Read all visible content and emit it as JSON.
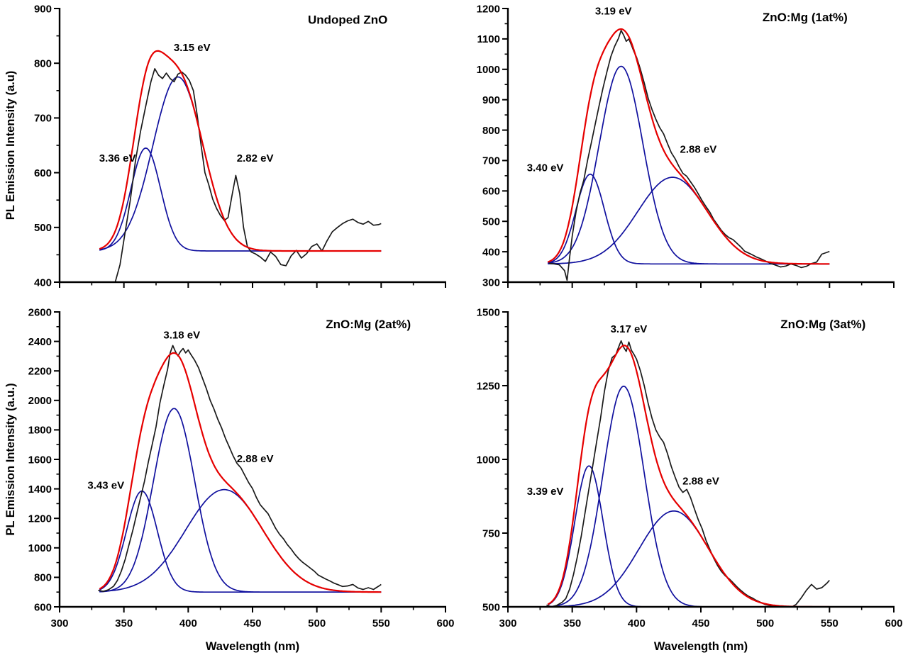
{
  "figure": {
    "background": "#ffffff",
    "colors": {
      "measured": "#1a1a1a",
      "fit": "#e60000",
      "component": "#10109e",
      "axis": "#000000"
    }
  },
  "chart_data": [
    {
      "type": "line",
      "title": "Undoped ZnO",
      "title_pos": [
        524,
        872
      ],
      "xlabel": "",
      "ylabel": "PL Emission Intensity (a.u)",
      "show_x_tick_labels": false,
      "xlim": [
        300,
        600
      ],
      "ylim": [
        400,
        900
      ],
      "xticks": [
        300,
        350,
        400,
        450,
        500,
        550,
        600
      ],
      "yticks": [
        400,
        500,
        600,
        700,
        800,
        900
      ],
      "x_minor_step": 25,
      "y_minor_step": 50,
      "baseline": 457,
      "curve_range": [
        331,
        550
      ],
      "fit_components": [
        {
          "label": "3.36 eV",
          "center": 367,
          "amplitude": 188,
          "sigma": 11.5
        },
        {
          "label": "3.15 eV",
          "center": 392,
          "amplitude": 318,
          "sigma": 19.5
        }
      ],
      "annotations": [
        {
          "text": "3.36 eV",
          "x": 345,
          "y": 620
        },
        {
          "text": "3.15 eV",
          "x": 403,
          "y": 822
        },
        {
          "text": "2.82 eV",
          "x": 452,
          "y": 620
        }
      ],
      "measured": [
        [
          343,
          398
        ],
        [
          347,
          432
        ],
        [
          351,
          492
        ],
        [
          355,
          550
        ],
        [
          359,
          622
        ],
        [
          363,
          676
        ],
        [
          367,
          722
        ],
        [
          371,
          766
        ],
        [
          374,
          790
        ],
        [
          377,
          778
        ],
        [
          380,
          772
        ],
        [
          383,
          782
        ],
        [
          386,
          772
        ],
        [
          389,
          766
        ],
        [
          392,
          780
        ],
        [
          395,
          784
        ],
        [
          398,
          778
        ],
        [
          401,
          768
        ],
        [
          404,
          750
        ],
        [
          407,
          705
        ],
        [
          410,
          650
        ],
        [
          413,
          600
        ],
        [
          416,
          578
        ],
        [
          419,
          552
        ],
        [
          422,
          535
        ],
        [
          425,
          522
        ],
        [
          428,
          513
        ],
        [
          431,
          518
        ],
        [
          434,
          558
        ],
        [
          437,
          595
        ],
        [
          440,
          562
        ],
        [
          443,
          500
        ],
        [
          446,
          465
        ],
        [
          449,
          455
        ],
        [
          452,
          452
        ],
        [
          456,
          446
        ],
        [
          460,
          438
        ],
        [
          464,
          455
        ],
        [
          468,
          447
        ],
        [
          472,
          432
        ],
        [
          476,
          430
        ],
        [
          480,
          448
        ],
        [
          484,
          458
        ],
        [
          488,
          444
        ],
        [
          492,
          452
        ],
        [
          496,
          465
        ],
        [
          500,
          470
        ],
        [
          504,
          457
        ],
        [
          508,
          476
        ],
        [
          512,
          492
        ],
        [
          516,
          500
        ],
        [
          520,
          507
        ],
        [
          524,
          512
        ],
        [
          528,
          515
        ],
        [
          532,
          509
        ],
        [
          536,
          506
        ],
        [
          540,
          511
        ],
        [
          544,
          504
        ],
        [
          548,
          505
        ],
        [
          550,
          507
        ]
      ]
    },
    {
      "type": "line",
      "title": "ZnO:Mg (1at%)",
      "title_pos": [
        531,
        1158
      ],
      "xlabel": "",
      "ylabel": "",
      "show_x_tick_labels": false,
      "xlim": [
        300,
        600
      ],
      "ylim": [
        300,
        1200
      ],
      "xticks": [
        300,
        350,
        400,
        450,
        500,
        550,
        600
      ],
      "yticks": [
        300,
        400,
        500,
        600,
        700,
        800,
        900,
        1000,
        1100,
        1200
      ],
      "x_minor_step": 25,
      "y_minor_step": 50,
      "baseline": 360,
      "curve_range": [
        331,
        550
      ],
      "fit_components": [
        {
          "label": "3.40 eV",
          "center": 364,
          "amplitude": 295,
          "sigma": 11
        },
        {
          "label": "3.19 eV",
          "center": 388,
          "amplitude": 650,
          "sigma": 17
        },
        {
          "label": "2.88 eV",
          "center": 428,
          "amplitude": 285,
          "sigma": 27
        }
      ],
      "annotations": [
        {
          "text": "3.40 eV",
          "x": 329,
          "y": 665
        },
        {
          "text": "3.19 eV",
          "x": 382,
          "y": 1180
        },
        {
          "text": "2.88 eV",
          "x": 448,
          "y": 725
        }
      ],
      "measured": [
        [
          332,
          362
        ],
        [
          336,
          360
        ],
        [
          340,
          357
        ],
        [
          344,
          338
        ],
        [
          346,
          306
        ],
        [
          348,
          382
        ],
        [
          350,
          452
        ],
        [
          353,
          532
        ],
        [
          356,
          592
        ],
        [
          359,
          636
        ],
        [
          362,
          702
        ],
        [
          365,
          762
        ],
        [
          368,
          822
        ],
        [
          371,
          882
        ],
        [
          374,
          940
        ],
        [
          377,
          992
        ],
        [
          380,
          1042
        ],
        [
          383,
          1076
        ],
        [
          386,
          1102
        ],
        [
          388,
          1128
        ],
        [
          390,
          1112
        ],
        [
          392,
          1092
        ],
        [
          394,
          1100
        ],
        [
          396,
          1080
        ],
        [
          398,
          1058
        ],
        [
          400,
          1040
        ],
        [
          403,
          1000
        ],
        [
          406,
          955
        ],
        [
          409,
          905
        ],
        [
          412,
          868
        ],
        [
          415,
          836
        ],
        [
          418,
          808
        ],
        [
          421,
          788
        ],
        [
          424,
          756
        ],
        [
          427,
          726
        ],
        [
          430,
          706
        ],
        [
          433,
          680
        ],
        [
          436,
          658
        ],
        [
          439,
          648
        ],
        [
          442,
          630
        ],
        [
          445,
          612
        ],
        [
          448,
          590
        ],
        [
          451,
          568
        ],
        [
          454,
          548
        ],
        [
          457,
          530
        ],
        [
          460,
          506
        ],
        [
          463,
          488
        ],
        [
          466,
          470
        ],
        [
          469,
          456
        ],
        [
          472,
          446
        ],
        [
          475,
          440
        ],
        [
          478,
          428
        ],
        [
          481,
          416
        ],
        [
          484,
          402
        ],
        [
          487,
          396
        ],
        [
          490,
          390
        ],
        [
          493,
          383
        ],
        [
          496,
          378
        ],
        [
          500,
          370
        ],
        [
          504,
          362
        ],
        [
          508,
          356
        ],
        [
          512,
          350
        ],
        [
          516,
          353
        ],
        [
          520,
          360
        ],
        [
          524,
          355
        ],
        [
          528,
          348
        ],
        [
          532,
          352
        ],
        [
          536,
          361
        ],
        [
          540,
          366
        ],
        [
          544,
          392
        ],
        [
          548,
          398
        ],
        [
          550,
          401
        ]
      ]
    },
    {
      "type": "line",
      "title": "ZnO:Mg (2at%)",
      "title_pos": [
        540,
        2490
      ],
      "xlabel": "Wavelength (nm)",
      "ylabel": "PL Emission Intensity (a.u.)",
      "show_x_tick_labels": true,
      "xlim": [
        300,
        600
      ],
      "ylim": [
        600,
        2600
      ],
      "xticks": [
        300,
        350,
        400,
        450,
        500,
        550,
        600
      ],
      "yticks": [
        600,
        800,
        1000,
        1200,
        1400,
        1600,
        1800,
        2000,
        2200,
        2400,
        2600
      ],
      "x_minor_step": 25,
      "y_minor_step": 100,
      "baseline": 700,
      "curve_range": [
        331,
        550
      ],
      "fit_components": [
        {
          "label": "3.43 eV",
          "center": 364,
          "amplitude": 685,
          "sigma": 12
        },
        {
          "label": "3.18 eV",
          "center": 389,
          "amplitude": 1245,
          "sigma": 16
        },
        {
          "label": "2.88 eV",
          "center": 428,
          "amplitude": 695,
          "sigma": 30
        }
      ],
      "annotations": [
        {
          "text": "3.43 eV",
          "x": 336,
          "y": 1400
        },
        {
          "text": "3.18 eV",
          "x": 395,
          "y": 2420
        },
        {
          "text": "2.88 eV",
          "x": 452,
          "y": 1580
        }
      ],
      "measured": [
        [
          330,
          712
        ],
        [
          334,
          705
        ],
        [
          338,
          716
        ],
        [
          342,
          740
        ],
        [
          345,
          780
        ],
        [
          348,
          842
        ],
        [
          351,
          922
        ],
        [
          354,
          1022
        ],
        [
          357,
          1122
        ],
        [
          360,
          1232
        ],
        [
          363,
          1342
        ],
        [
          366,
          1452
        ],
        [
          369,
          1582
        ],
        [
          372,
          1702
        ],
        [
          375,
          1822
        ],
        [
          378,
          1982
        ],
        [
          381,
          2102
        ],
        [
          384,
          2212
        ],
        [
          386,
          2322
        ],
        [
          388,
          2372
        ],
        [
          390,
          2332
        ],
        [
          392,
          2302
        ],
        [
          394,
          2332
        ],
        [
          396,
          2352
        ],
        [
          398,
          2322
        ],
        [
          400,
          2342
        ],
        [
          402,
          2312
        ],
        [
          405,
          2272
        ],
        [
          408,
          2222
        ],
        [
          411,
          2152
        ],
        [
          414,
          2082
        ],
        [
          417,
          2002
        ],
        [
          420,
          1942
        ],
        [
          423,
          1872
        ],
        [
          426,
          1812
        ],
        [
          429,
          1742
        ],
        [
          432,
          1682
        ],
        [
          435,
          1622
        ],
        [
          438,
          1572
        ],
        [
          441,
          1542
        ],
        [
          444,
          1492
        ],
        [
          447,
          1442
        ],
        [
          450,
          1402
        ],
        [
          453,
          1342
        ],
        [
          456,
          1292
        ],
        [
          459,
          1262
        ],
        [
          462,
          1232
        ],
        [
          465,
          1182
        ],
        [
          468,
          1132
        ],
        [
          471,
          1092
        ],
        [
          474,
          1062
        ],
        [
          477,
          1022
        ],
        [
          480,
          992
        ],
        [
          483,
          956
        ],
        [
          486,
          926
        ],
        [
          489,
          902
        ],
        [
          492,
          882
        ],
        [
          495,
          862
        ],
        [
          498,
          842
        ],
        [
          501,
          816
        ],
        [
          504,
          802
        ],
        [
          507,
          788
        ],
        [
          510,
          776
        ],
        [
          513,
          762
        ],
        [
          516,
          752
        ],
        [
          520,
          738
        ],
        [
          524,
          742
        ],
        [
          528,
          752
        ],
        [
          532,
          728
        ],
        [
          536,
          718
        ],
        [
          540,
          730
        ],
        [
          544,
          718
        ],
        [
          548,
          740
        ],
        [
          550,
          752
        ]
      ]
    },
    {
      "type": "line",
      "title": "ZnO:Mg (3at%)",
      "title_pos": [
        545,
        1445
      ],
      "xlabel": "Wavelength (nm)",
      "ylabel": "",
      "show_x_tick_labels": true,
      "xlim": [
        300,
        600
      ],
      "ylim": [
        500,
        1500
      ],
      "xticks": [
        300,
        350,
        400,
        450,
        500,
        550,
        600
      ],
      "yticks": [
        500,
        750,
        1000,
        1250,
        1500
      ],
      "x_minor_step": 25,
      "y_minor_step": 50,
      "baseline": 500,
      "curve_range": [
        331,
        550
      ],
      "fit_components": [
        {
          "label": "3.39 eV",
          "center": 363,
          "amplitude": 478,
          "sigma": 11
        },
        {
          "label": "3.17 eV",
          "center": 390,
          "amplitude": 748,
          "sigma": 16
        },
        {
          "label": "2.88 eV",
          "center": 429,
          "amplitude": 325,
          "sigma": 27
        }
      ],
      "annotations": [
        {
          "text": "3.39 eV",
          "x": 329,
          "y": 880
        },
        {
          "text": "3.17 eV",
          "x": 394,
          "y": 1430
        },
        {
          "text": "2.88 eV",
          "x": 450,
          "y": 915
        }
      ],
      "measured": [
        [
          330,
          506
        ],
        [
          334,
          500
        ],
        [
          338,
          505
        ],
        [
          342,
          515
        ],
        [
          345,
          528
        ],
        [
          348,
          560
        ],
        [
          351,
          610
        ],
        [
          354,
          670
        ],
        [
          357,
          740
        ],
        [
          360,
          820
        ],
        [
          363,
          900
        ],
        [
          366,
          980
        ],
        [
          369,
          1060
        ],
        [
          372,
          1140
        ],
        [
          375,
          1230
        ],
        [
          378,
          1300
        ],
        [
          381,
          1345
        ],
        [
          384,
          1356
        ],
        [
          386,
          1380
        ],
        [
          388,
          1402
        ],
        [
          390,
          1380
        ],
        [
          392,
          1366
        ],
        [
          394,
          1398
        ],
        [
          396,
          1370
        ],
        [
          398,
          1356
        ],
        [
          400,
          1340
        ],
        [
          403,
          1300
        ],
        [
          406,
          1250
        ],
        [
          409,
          1190
        ],
        [
          412,
          1140
        ],
        [
          415,
          1100
        ],
        [
          418,
          1076
        ],
        [
          421,
          1058
        ],
        [
          424,
          1020
        ],
        [
          427,
          976
        ],
        [
          430,
          940
        ],
        [
          433,
          906
        ],
        [
          436,
          888
        ],
        [
          439,
          898
        ],
        [
          442,
          870
        ],
        [
          445,
          832
        ],
        [
          448,
          795
        ],
        [
          451,
          765
        ],
        [
          454,
          725
        ],
        [
          457,
          695
        ],
        [
          460,
          665
        ],
        [
          463,
          640
        ],
        [
          466,
          620
        ],
        [
          469,
          605
        ],
        [
          472,
          595
        ],
        [
          475,
          582
        ],
        [
          478,
          568
        ],
        [
          481,
          556
        ],
        [
          484,
          545
        ],
        [
          487,
          536
        ],
        [
          490,
          530
        ],
        [
          493,
          522
        ],
        [
          496,
          516
        ],
        [
          500,
          508
        ],
        [
          504,
          504
        ],
        [
          508,
          500
        ],
        [
          512,
          503
        ],
        [
          516,
          499
        ],
        [
          520,
          498
        ],
        [
          524,
          508
        ],
        [
          528,
          530
        ],
        [
          532,
          556
        ],
        [
          536,
          576
        ],
        [
          540,
          560
        ],
        [
          544,
          565
        ],
        [
          548,
          580
        ],
        [
          550,
          590
        ]
      ]
    }
  ]
}
